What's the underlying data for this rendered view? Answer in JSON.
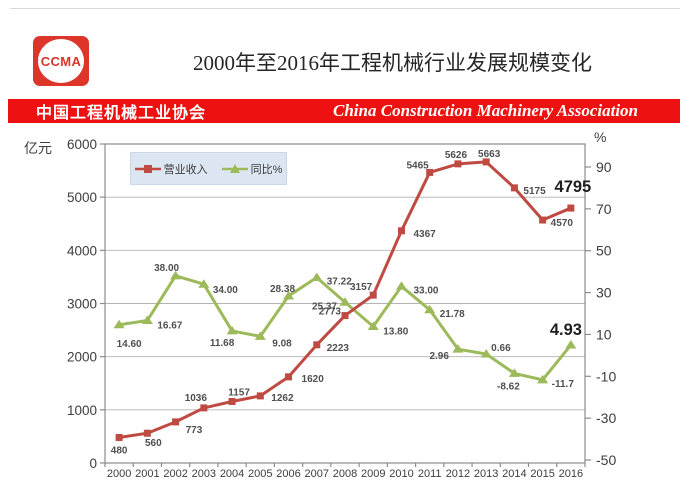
{
  "header": {
    "logo_text": "CCMA",
    "title": "2000年至2016年工程机械行业发展规模变化"
  },
  "banner": {
    "cn": "中国工程机械工业协会",
    "en": "China Construction Machinery Association",
    "bg_color": "#ee1111",
    "text_color": "#ffffff"
  },
  "chart_data": {
    "type": "line",
    "categories": [
      "2000",
      "2001",
      "2002",
      "2003",
      "2004",
      "2005",
      "2006",
      "2007",
      "2008",
      "2009",
      "2010",
      "2011",
      "2012",
      "2013",
      "2014",
      "2015",
      "2016"
    ],
    "left_axis": {
      "label": "亿元",
      "min": 0,
      "max": 6000,
      "ticks": [
        6000,
        5000,
        4000,
        3000,
        2000,
        1000,
        0
      ]
    },
    "right_axis": {
      "label": "%",
      "ticks": [
        90,
        70,
        50,
        30,
        10,
        -10,
        -30,
        -50
      ]
    },
    "grid": true,
    "legend_position": "top-left-inside",
    "series": [
      {
        "name": "营业收入",
        "axis": "left",
        "marker": "square",
        "color": "#be4a42",
        "values": [
          480,
          560,
          773,
          1036,
          1157,
          1262,
          1620,
          2223,
          2773,
          3157,
          4367,
          5465,
          5626,
          5663,
          5175,
          4570,
          4795
        ],
        "labels": [
          "480",
          "560",
          "773",
          "1036",
          "1157",
          "1262",
          "1620",
          "2223",
          "2773",
          "3157",
          "4367",
          "5465",
          "5626",
          "5663",
          "5175",
          "4570",
          "4795"
        ]
      },
      {
        "name": "同比%",
        "axis": "right",
        "marker": "triangle",
        "color": "#9cba5a",
        "values": [
          14.6,
          16.67,
          38.0,
          34.0,
          11.68,
          9.08,
          28.38,
          37.22,
          25.37,
          13.8,
          33.0,
          21.78,
          2.96,
          0.66,
          -8.62,
          -11.7,
          4.93
        ],
        "labels": [
          "14.60",
          "16.67",
          "38.00",
          "34.00",
          "11.68",
          "9.08",
          "28.38",
          "37.22",
          "25.37",
          "13.80",
          "33.00",
          "21.78",
          "2.96",
          "0.66",
          "-8.62",
          "-11.7",
          "4.93"
        ]
      }
    ],
    "colors": {
      "gridline": "#b3b3b3",
      "plot_border": "#8c8c8c",
      "axis_text": "#3d3d3d",
      "data_label": "#4f4f4f",
      "highlight_label": "#1f1f1f",
      "legend_bg": "#dce6f2"
    }
  }
}
